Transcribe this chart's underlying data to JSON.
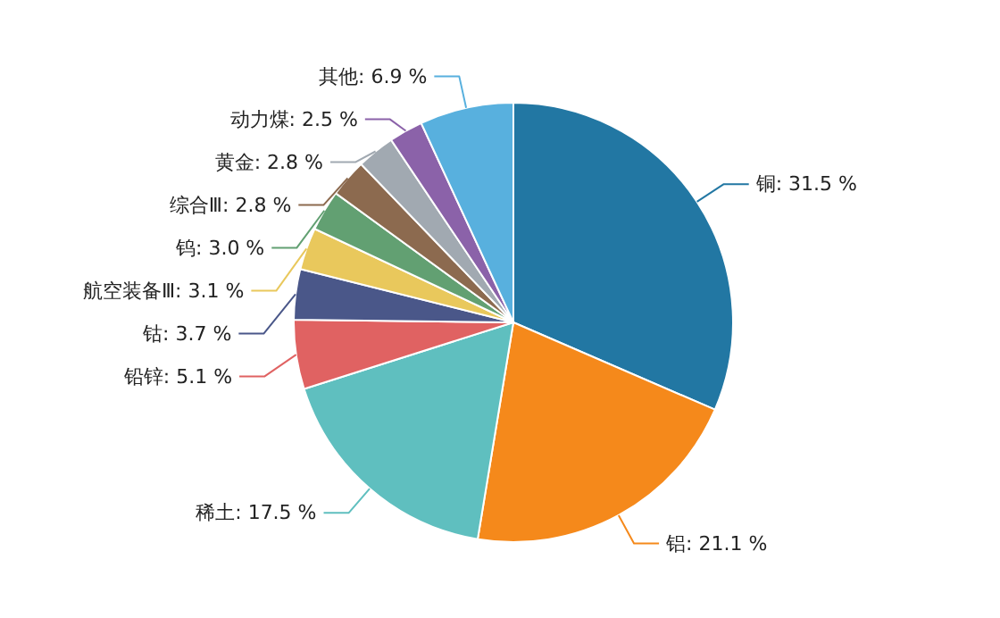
{
  "chart_data": {
    "type": "pie",
    "categories": [
      "铜",
      "铝",
      "稀土",
      "铅锌",
      "钴",
      "航空装备Ⅲ",
      "钨",
      "综合Ⅲ",
      "黄金",
      "动力煤",
      "其他"
    ],
    "values": [
      31.5,
      21.1,
      17.5,
      5.1,
      3.7,
      3.1,
      3.0,
      2.8,
      2.8,
      2.5,
      6.9
    ],
    "value_labels": [
      "31.5 %",
      "21.1 %",
      "17.5 %",
      "5.1 %",
      "3.7 %",
      "3.1 %",
      "3.0 %",
      "2.8 %",
      "2.8 %",
      "2.5 %",
      "6.9 %"
    ],
    "colors": [
      "#2277a3",
      "#f5891b",
      "#5fbfbf",
      "#e06262",
      "#4a5789",
      "#e9c85c",
      "#62a072",
      "#8c6a4f",
      "#a1a9b1",
      "#8b62a9",
      "#58b0de"
    ]
  }
}
